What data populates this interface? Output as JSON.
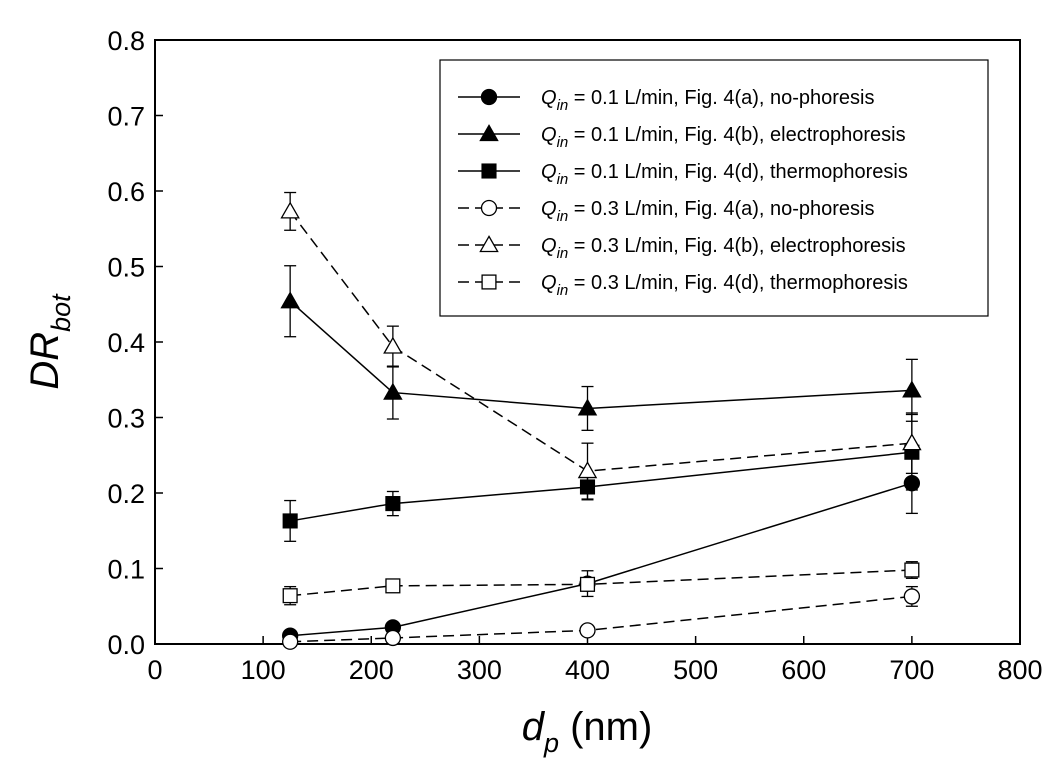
{
  "chart_data": {
    "type": "line",
    "title": "",
    "xlabel": {
      "main": "d",
      "sub": "p",
      "rest": " (nm)"
    },
    "ylabel": {
      "main": "DR",
      "sub": "bot"
    },
    "xlim": [
      0,
      800
    ],
    "ylim": [
      0.0,
      0.8
    ],
    "xticks": [
      "0",
      "100",
      "200",
      "300",
      "400",
      "500",
      "600",
      "700",
      "800"
    ],
    "yticks": [
      "0.0",
      "0.1",
      "0.2",
      "0.3",
      "0.4",
      "0.5",
      "0.6",
      "0.7",
      "0.8"
    ],
    "grid": false,
    "legend_position": "top-right",
    "x": [
      125,
      220,
      400,
      700
    ],
    "series": [
      {
        "name": {
          "q": "Q",
          "sub": "in",
          "rest": " = 0.1 L/min, Fig. 4(a), no-phoresis"
        },
        "marker": "circle",
        "filled": true,
        "dashed": false,
        "values": [
          0.011,
          0.022,
          0.08,
          0.213
        ],
        "errors": [
          0.004,
          0.006,
          0.017,
          0.04
        ]
      },
      {
        "name": {
          "q": "Q",
          "sub": "in",
          "rest": " = 0.1 L/min, Fig. 4(b), electrophoresis"
        },
        "marker": "triangle",
        "filled": true,
        "dashed": false,
        "values": [
          0.454,
          0.333,
          0.312,
          0.336
        ],
        "errors": [
          0.047,
          0.035,
          0.029,
          0.041
        ]
      },
      {
        "name": {
          "q": "Q",
          "sub": "in",
          "rest": " = 0.1 L/min, Fig. 4(d), thermophoresis"
        },
        "marker": "square",
        "filled": true,
        "dashed": false,
        "values": [
          0.163,
          0.186,
          0.208,
          0.254
        ],
        "errors": [
          0.027,
          0.016,
          0.017,
          0.05
        ]
      },
      {
        "name": {
          "q": "Q",
          "sub": "in",
          "rest": " = 0.3 L/min, Fig. 4(a), no-phoresis"
        },
        "marker": "circle",
        "filled": false,
        "dashed": true,
        "values": [
          0.003,
          0.008,
          0.018,
          0.063
        ],
        "errors": [
          0.003,
          0.004,
          0.005,
          0.013
        ]
      },
      {
        "name": {
          "q": "Q",
          "sub": "in",
          "rest": " = 0.3 L/min, Fig. 4(b), electrophoresis"
        },
        "marker": "triangle",
        "filled": false,
        "dashed": true,
        "values": [
          0.573,
          0.394,
          0.229,
          0.266
        ],
        "errors": [
          0.025,
          0.027,
          0.037,
          0.04
        ]
      },
      {
        "name": {
          "q": "Q",
          "sub": "in",
          "rest": " = 0.3 L/min, Fig. 4(d), thermophoresis"
        },
        "marker": "square",
        "filled": false,
        "dashed": true,
        "values": [
          0.064,
          0.077,
          0.079,
          0.098
        ],
        "errors": [
          0.012,
          0.005,
          0.004,
          0.011
        ]
      }
    ]
  }
}
